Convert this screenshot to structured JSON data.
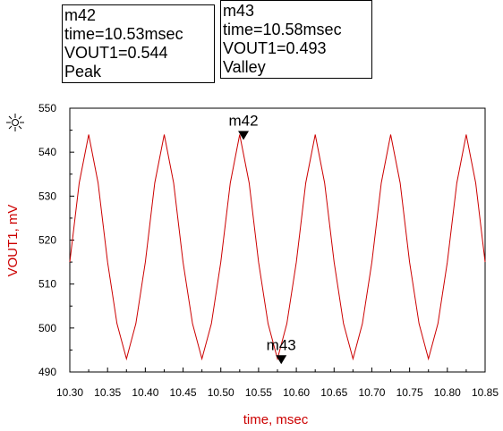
{
  "markers_panel": {
    "m42": {
      "name": "m42",
      "time_line": "time=10.53msec",
      "value_line": "VOUT1=0.544",
      "kind": "Peak"
    },
    "m43": {
      "name": "m43",
      "time_line": "time=10.58msec",
      "value_line": "VOUT1=0.493",
      "kind": "Valley"
    }
  },
  "chart_data": {
    "type": "line",
    "xlabel": "time, msec",
    "ylabel": "VOUT1, mV",
    "xlim": [
      10.3,
      10.85
    ],
    "ylim": [
      490,
      550
    ],
    "xticks": [
      "10.30",
      "10.35",
      "10.40",
      "10.45",
      "10.50",
      "10.55",
      "10.60",
      "10.65",
      "10.70",
      "10.75",
      "10.80",
      "10.85"
    ],
    "yticks": [
      "550",
      "540",
      "530",
      "520",
      "510",
      "500",
      "490"
    ],
    "grid": false,
    "line_color": "#cc0000",
    "series": [
      {
        "x": [
          10.3,
          10.3125,
          10.325,
          10.3375,
          10.35,
          10.3625,
          10.375,
          10.3875,
          10.4,
          10.4125,
          10.425,
          10.4375,
          10.45,
          10.4625,
          10.475,
          10.4875,
          10.5,
          10.5125,
          10.525,
          10.5375,
          10.55,
          10.5625,
          10.575,
          10.5875,
          10.6,
          10.6125,
          10.625,
          10.6375,
          10.65,
          10.6625,
          10.675,
          10.6875,
          10.7,
          10.7125,
          10.725,
          10.7375,
          10.75,
          10.7625,
          10.775,
          10.7875,
          10.8,
          10.8125,
          10.825,
          10.8375,
          10.85
        ],
        "y": [
          515,
          533,
          544,
          533,
          515,
          501,
          493,
          501,
          515,
          533,
          544,
          533,
          515,
          501,
          493,
          501,
          515,
          533,
          544,
          533,
          515,
          501,
          493,
          501,
          515,
          533,
          544,
          533,
          515,
          501,
          493,
          501,
          515,
          533,
          544,
          533,
          515,
          501,
          493,
          501,
          515,
          533,
          544,
          533,
          515
        ]
      }
    ],
    "markers": [
      {
        "label": "m42",
        "x": 10.53,
        "y": 544.0
      },
      {
        "label": "m43",
        "x": 10.58,
        "y": 493.0
      }
    ]
  }
}
